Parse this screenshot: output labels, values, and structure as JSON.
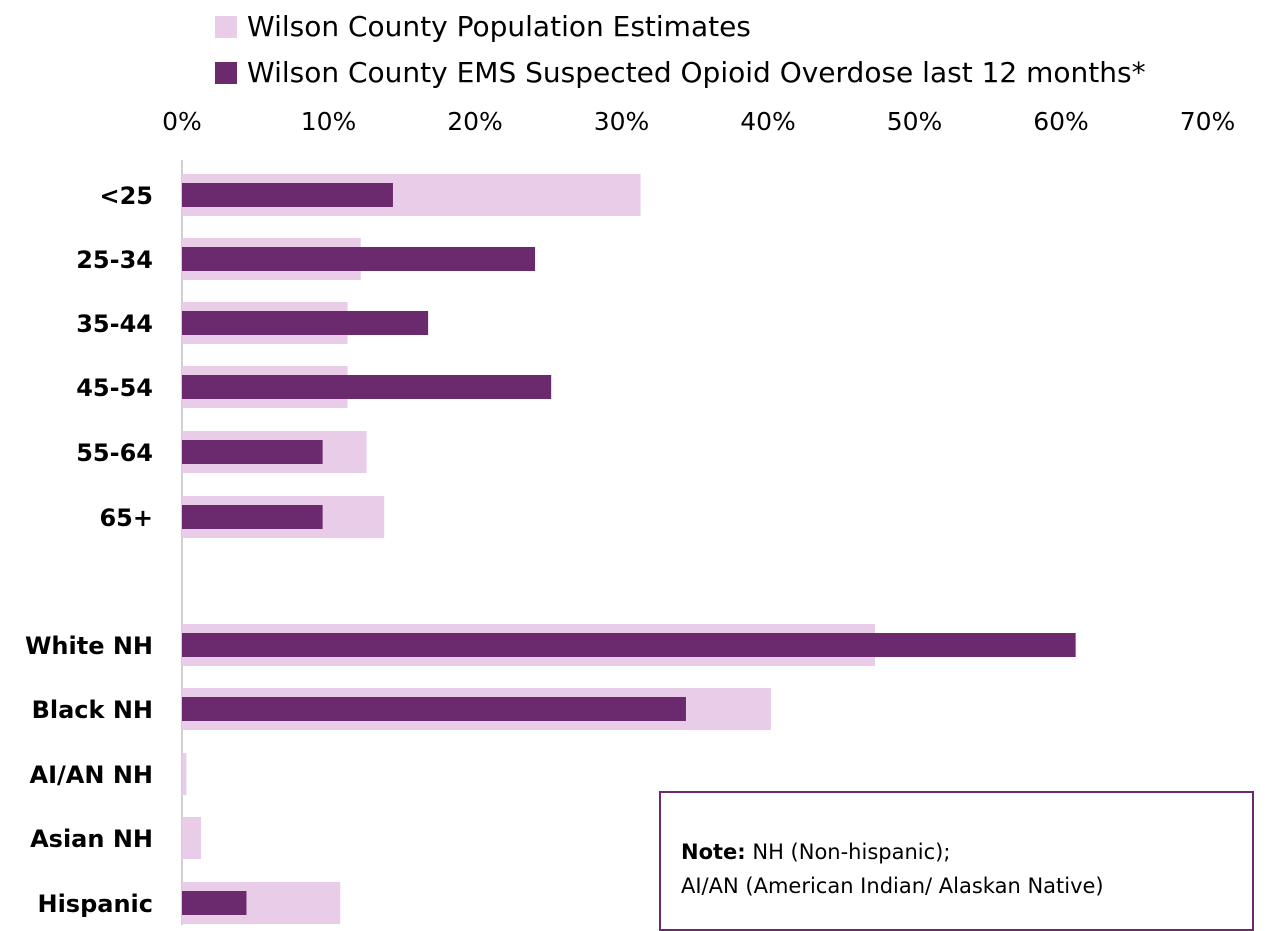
{
  "chart_data": {
    "type": "bar",
    "orientation": "horizontal",
    "legend_position": "top",
    "grid": false,
    "xlim": [
      0,
      70
    ],
    "x_ticks": [
      "0%",
      "10%",
      "20%",
      "30%",
      "40%",
      "50%",
      "60%",
      "70%"
    ],
    "categories": [
      "<25",
      "25-34",
      "35-44",
      "45-54",
      "55-64",
      "65+",
      "White NH",
      "Black NH",
      "AI/AN NH",
      "Asian NH",
      "Hispanic"
    ],
    "series": [
      {
        "name": "Wilson County Population Estimates",
        "color": "#e8cce8",
        "values": [
          31.3,
          12.2,
          11.3,
          11.3,
          12.6,
          13.8,
          47.3,
          40.2,
          0.3,
          1.3,
          10.8
        ]
      },
      {
        "name": "Wilson County EMS Suspected Opioid Overdose last 12 months*",
        "color": "#6b2a6e",
        "values": [
          14.4,
          24.1,
          16.8,
          25.2,
          9.6,
          9.6,
          61.0,
          34.4,
          0,
          0,
          4.4
        ]
      }
    ]
  },
  "note": {
    "bold": "Note:",
    "line1": " NH (Non-hispanic);",
    "line2": "AI/AN (American Indian/ Alaskan Native)"
  }
}
